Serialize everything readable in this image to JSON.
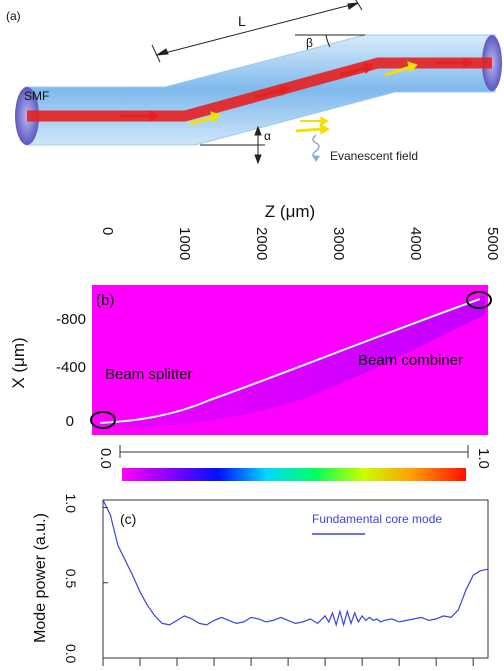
{
  "panel_a": {
    "label": "(a)",
    "length_symbol": "L",
    "beta_symbol": "β",
    "alpha_symbol": "α",
    "smf_label": "SMF",
    "evanescent_label": "Evanescent field"
  },
  "panel_b": {
    "label": "(b)",
    "z_axis_title": "Z (μm)",
    "x_axis_title": "X (μm)",
    "z_ticks": [
      "0",
      "1000",
      "2000",
      "3000",
      "4000",
      "5000"
    ],
    "x_ticks": [
      "-800",
      "-400",
      "0"
    ],
    "splitter_label": "Beam splitter",
    "combiner_label": "Beam combiner",
    "colorbar_min": "0.0",
    "colorbar_max": "1.0"
  },
  "chart_data": {
    "type": "line",
    "label": "(c)",
    "ylabel": "Mode power (a.u.)",
    "yticks": [
      "1.0",
      "0.5",
      "0.0"
    ],
    "ylim": [
      0,
      1.05
    ],
    "xlim": [
      0,
      5200
    ],
    "legend_entry": "Fundamental core mode",
    "series": [
      {
        "name": "Fundamental core mode",
        "x": [
          0,
          50,
          100,
          150,
          200,
          250,
          300,
          400,
          500,
          600,
          700,
          800,
          900,
          1000,
          1100,
          1200,
          1300,
          1400,
          1500,
          1600,
          1700,
          1800,
          1900,
          2000,
          2100,
          2200,
          2300,
          2400,
          2500,
          2600,
          2700,
          2800,
          2900,
          3000,
          3050,
          3100,
          3150,
          3200,
          3250,
          3300,
          3350,
          3400,
          3450,
          3500,
          3550,
          3600,
          3650,
          3700,
          3750,
          3800,
          3900,
          4000,
          4100,
          4200,
          4300,
          4400,
          4500,
          4600,
          4700,
          4800,
          4900,
          5000,
          5100,
          5200
        ],
        "values": [
          1.05,
          1.0,
          0.95,
          0.85,
          0.75,
          0.7,
          0.65,
          0.55,
          0.44,
          0.35,
          0.28,
          0.23,
          0.22,
          0.25,
          0.28,
          0.26,
          0.23,
          0.22,
          0.25,
          0.27,
          0.25,
          0.23,
          0.24,
          0.27,
          0.26,
          0.24,
          0.25,
          0.27,
          0.25,
          0.23,
          0.24,
          0.26,
          0.23,
          0.28,
          0.24,
          0.3,
          0.22,
          0.31,
          0.22,
          0.31,
          0.23,
          0.3,
          0.24,
          0.28,
          0.25,
          0.27,
          0.25,
          0.26,
          0.24,
          0.25,
          0.26,
          0.24,
          0.25,
          0.26,
          0.27,
          0.25,
          0.26,
          0.28,
          0.27,
          0.32,
          0.45,
          0.55,
          0.58,
          0.59
        ]
      }
    ]
  },
  "colors": {
    "beam": "#e62020",
    "arrow_yellow": "#f2e200",
    "fiber_blue": "#8fc4f0",
    "magenta_background": "#ff00ff",
    "mode_line": "#3a44e0"
  }
}
